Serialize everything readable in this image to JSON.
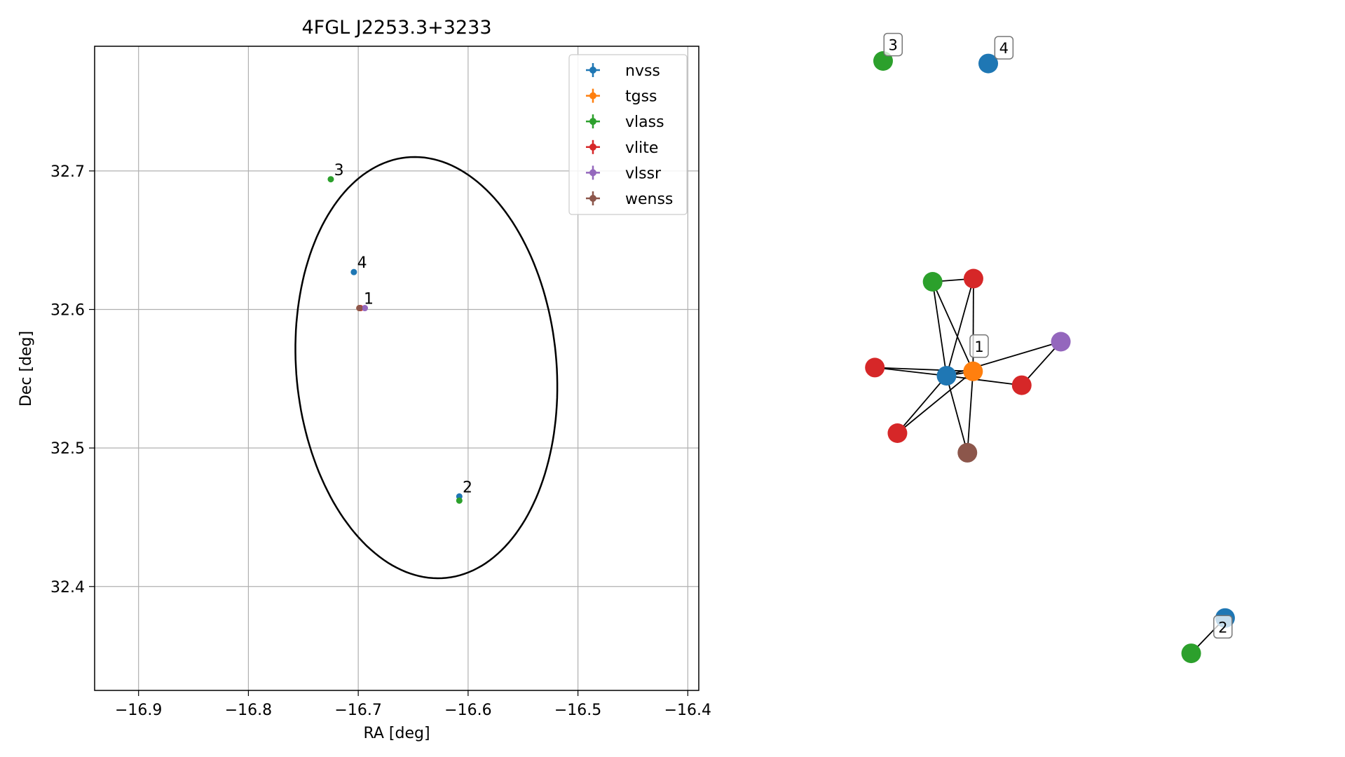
{
  "colors": {
    "nvss": "#1f77b4",
    "tgss": "#ff7f0e",
    "vlass": "#2ca02c",
    "vlite": "#d62728",
    "vlssr": "#9467bd",
    "wenss": "#8c564b",
    "grid": "#b0b0b0",
    "ellipse": "#000000"
  },
  "chart_data": [
    {
      "type": "scatter",
      "title": "4FGL J2253.3+3233",
      "xlabel": "RA [deg]",
      "ylabel": "Dec [deg]",
      "xlim": [
        -16.94,
        -16.39
      ],
      "ylim": [
        32.325,
        32.79
      ],
      "xticks": [
        -16.9,
        -16.8,
        -16.7,
        -16.6,
        -16.5,
        -16.4
      ],
      "xtick_labels": [
        "−16.9",
        "−16.8",
        "−16.7",
        "−16.6",
        "−16.5",
        "−16.4"
      ],
      "yticks": [
        32.4,
        32.5,
        32.6,
        32.7
      ],
      "ytick_labels": [
        "32.4",
        "32.5",
        "32.6",
        "32.7"
      ],
      "grid": true,
      "legend_position": "top-right",
      "series": [
        {
          "name": "nvss",
          "points": [
            {
              "x": -16.704,
              "y": 32.627
            },
            {
              "x": -16.608,
              "y": 32.465
            }
          ]
        },
        {
          "name": "tgss",
          "points": [
            {
              "x": -16.699,
              "y": 32.601
            }
          ]
        },
        {
          "name": "vlass",
          "points": [
            {
              "x": -16.725,
              "y": 32.694
            },
            {
              "x": -16.608,
              "y": 32.462
            }
          ]
        },
        {
          "name": "vlite",
          "points": [
            {
              "x": -16.698,
              "y": 32.601
            }
          ]
        },
        {
          "name": "vlssr",
          "points": [
            {
              "x": -16.694,
              "y": 32.601
            }
          ]
        },
        {
          "name": "wenss",
          "points": [
            {
              "x": -16.699,
              "y": 32.601
            }
          ]
        }
      ],
      "ellipse": {
        "center_x": -16.638,
        "center_y": 32.558,
        "semi_x": 0.118,
        "semi_y": 0.153,
        "tilt_deg": 10
      },
      "annotations": [
        {
          "text": "1",
          "x": -16.695,
          "y": 32.604
        },
        {
          "text": "2",
          "x": -16.605,
          "y": 32.468
        },
        {
          "text": "3",
          "x": -16.722,
          "y": 32.697
        },
        {
          "text": "4",
          "x": -16.701,
          "y": 32.63
        }
      ]
    },
    {
      "type": "network",
      "nodes": [
        {
          "id": "n3v",
          "survey": "vlass",
          "x": 0.129,
          "y": 0.97,
          "label": ""
        },
        {
          "id": "n3l",
          "survey": "",
          "x": 0.152,
          "y": 0.996,
          "label": "3"
        },
        {
          "id": "n4v",
          "survey": "nvss",
          "x": 0.371,
          "y": 0.966,
          "label": ""
        },
        {
          "id": "n4l",
          "survey": "",
          "x": 0.407,
          "y": 0.991,
          "label": "4"
        },
        {
          "id": "g",
          "survey": "vlass",
          "x": 0.243,
          "y": 0.62,
          "label": ""
        },
        {
          "id": "r1",
          "survey": "vlite",
          "x": 0.337,
          "y": 0.625,
          "label": ""
        },
        {
          "id": "p",
          "survey": "vlssr",
          "x": 0.538,
          "y": 0.525,
          "label": ""
        },
        {
          "id": "o",
          "survey": "tgss",
          "x": 0.336,
          "y": 0.478,
          "label": ""
        },
        {
          "id": "ol",
          "survey": "",
          "x": 0.35,
          "y": 0.518,
          "label": "1"
        },
        {
          "id": "b",
          "survey": "nvss",
          "x": 0.275,
          "y": 0.471,
          "label": ""
        },
        {
          "id": "r2",
          "survey": "vlite",
          "x": 0.11,
          "y": 0.484,
          "label": ""
        },
        {
          "id": "r3",
          "survey": "vlite",
          "x": 0.448,
          "y": 0.456,
          "label": ""
        },
        {
          "id": "r4",
          "survey": "vlite",
          "x": 0.162,
          "y": 0.38,
          "label": ""
        },
        {
          "id": "w",
          "survey": "wenss",
          "x": 0.323,
          "y": 0.349,
          "label": ""
        },
        {
          "id": "n2b",
          "survey": "nvss",
          "x": 0.916,
          "y": 0.087,
          "label": ""
        },
        {
          "id": "n2l",
          "survey": "",
          "x": 0.911,
          "y": 0.073,
          "label": "2"
        },
        {
          "id": "n2g",
          "survey": "vlass",
          "x": 0.838,
          "y": 0.031,
          "label": ""
        }
      ],
      "edges": [
        [
          "g",
          "r1"
        ],
        [
          "g",
          "b"
        ],
        [
          "g",
          "o"
        ],
        [
          "r1",
          "b"
        ],
        [
          "r1",
          "o"
        ],
        [
          "r2",
          "b"
        ],
        [
          "r2",
          "o"
        ],
        [
          "r4",
          "b"
        ],
        [
          "r4",
          "o"
        ],
        [
          "w",
          "b"
        ],
        [
          "w",
          "o"
        ],
        [
          "p",
          "b"
        ],
        [
          "p",
          "r3"
        ],
        [
          "r3",
          "b"
        ],
        [
          "b",
          "o"
        ],
        [
          "n2b",
          "n2g"
        ]
      ]
    }
  ]
}
